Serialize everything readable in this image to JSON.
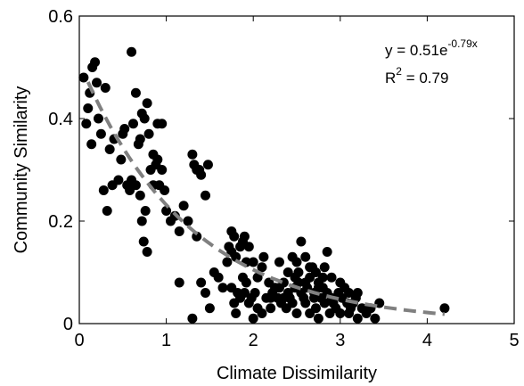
{
  "chart_data": {
    "type": "scatter",
    "xlabel": "Climate Dissimilarity",
    "ylabel": "Community Similarity",
    "xlim": [
      0,
      5
    ],
    "ylim": [
      0,
      0.6
    ],
    "x_ticks": [
      0,
      1,
      2,
      3,
      4,
      5
    ],
    "y_ticks": [
      0,
      0.2,
      0.4,
      0.6
    ],
    "x_tick_labels": [
      "0",
      "1",
      "2",
      "3",
      "4",
      "5"
    ],
    "y_tick_labels": [
      "0",
      "0.2",
      "0.4",
      "0.6"
    ],
    "grid": false,
    "annotation": {
      "equation_prefix": "y = 0.51e",
      "equation_exponent": "-0.79x",
      "r2_prefix": "R",
      "r2_sup": "2",
      "r2_suffix": " = 0.79"
    },
    "fit": {
      "a": 0.51,
      "b": -0.79,
      "x_range": [
        0.1,
        4.2
      ],
      "style": "dashed",
      "color": "#808080"
    },
    "marker_color": "#000000",
    "points": [
      [
        0.05,
        0.48
      ],
      [
        0.1,
        0.42
      ],
      [
        0.15,
        0.5
      ],
      [
        0.18,
        0.51
      ],
      [
        0.12,
        0.45
      ],
      [
        0.08,
        0.39
      ],
      [
        0.2,
        0.47
      ],
      [
        0.14,
        0.35
      ],
      [
        0.22,
        0.4
      ],
      [
        0.25,
        0.37
      ],
      [
        0.3,
        0.46
      ],
      [
        0.28,
        0.26
      ],
      [
        0.32,
        0.22
      ],
      [
        0.35,
        0.34
      ],
      [
        0.4,
        0.36
      ],
      [
        0.38,
        0.27
      ],
      [
        0.45,
        0.28
      ],
      [
        0.48,
        0.32
      ],
      [
        0.5,
        0.37
      ],
      [
        0.52,
        0.38
      ],
      [
        0.55,
        0.27
      ],
      [
        0.6,
        0.53
      ],
      [
        0.62,
        0.39
      ],
      [
        0.65,
        0.45
      ],
      [
        0.68,
        0.35
      ],
      [
        0.7,
        0.36
      ],
      [
        0.72,
        0.41
      ],
      [
        0.75,
        0.4
      ],
      [
        0.78,
        0.43
      ],
      [
        0.8,
        0.37
      ],
      [
        0.58,
        0.26
      ],
      [
        0.65,
        0.27
      ],
      [
        0.7,
        0.25
      ],
      [
        0.72,
        0.2
      ],
      [
        0.74,
        0.16
      ],
      [
        0.76,
        0.22
      ],
      [
        0.78,
        0.14
      ],
      [
        0.82,
        0.3
      ],
      [
        0.85,
        0.33
      ],
      [
        0.88,
        0.31
      ],
      [
        0.9,
        0.39
      ],
      [
        0.92,
        0.27
      ],
      [
        0.95,
        0.3
      ],
      [
        0.98,
        0.26
      ],
      [
        0.95,
        0.39
      ],
      [
        0.6,
        0.28
      ],
      [
        0.85,
        0.27
      ],
      [
        0.9,
        0.32
      ],
      [
        1.0,
        0.22
      ],
      [
        1.05,
        0.2
      ],
      [
        1.1,
        0.21
      ],
      [
        1.15,
        0.18
      ],
      [
        1.2,
        0.23
      ],
      [
        1.25,
        0.2
      ],
      [
        1.15,
        0.08
      ],
      [
        1.3,
        0.33
      ],
      [
        1.32,
        0.31
      ],
      [
        1.35,
        0.3
      ],
      [
        1.38,
        0.3
      ],
      [
        1.4,
        0.29
      ],
      [
        1.45,
        0.25
      ],
      [
        1.48,
        0.31
      ],
      [
        1.3,
        0.01
      ],
      [
        1.5,
        0.03
      ],
      [
        1.45,
        0.06
      ],
      [
        1.4,
        0.08
      ],
      [
        1.35,
        0.17
      ],
      [
        1.55,
        0.1
      ],
      [
        1.6,
        0.09
      ],
      [
        1.65,
        0.07
      ],
      [
        1.7,
        0.12
      ],
      [
        1.72,
        0.15
      ],
      [
        1.75,
        0.18
      ],
      [
        1.78,
        0.17
      ],
      [
        1.75,
        0.14
      ],
      [
        1.8,
        0.13
      ],
      [
        1.85,
        0.15
      ],
      [
        1.88,
        0.16
      ],
      [
        1.9,
        0.17
      ],
      [
        1.95,
        0.15
      ],
      [
        2.0,
        0.12
      ],
      [
        1.75,
        0.07
      ],
      [
        1.78,
        0.04
      ],
      [
        1.8,
        0.02
      ],
      [
        1.82,
        0.06
      ],
      [
        1.85,
        0.05
      ],
      [
        1.88,
        0.09
      ],
      [
        1.9,
        0.06
      ],
      [
        1.92,
        0.08
      ],
      [
        1.95,
        0.04
      ],
      [
        1.98,
        0.05
      ],
      [
        2.0,
        0.01
      ],
      [
        2.02,
        0.06
      ],
      [
        2.05,
        0.09
      ],
      [
        2.1,
        0.11
      ],
      [
        2.12,
        0.13
      ],
      [
        2.15,
        0.05
      ],
      [
        2.18,
        0.08
      ],
      [
        2.2,
        0.03
      ],
      [
        2.22,
        0.06
      ],
      [
        2.25,
        0.07
      ],
      [
        2.28,
        0.05
      ],
      [
        2.3,
        0.07
      ],
      [
        2.32,
        0.04
      ],
      [
        2.35,
        0.08
      ],
      [
        2.38,
        0.03
      ],
      [
        2.4,
        0.06
      ],
      [
        2.42,
        0.05
      ],
      [
        2.45,
        0.04
      ],
      [
        2.48,
        0.07
      ],
      [
        2.5,
        0.12
      ],
      [
        2.52,
        0.08
      ],
      [
        2.55,
        0.06
      ],
      [
        2.58,
        0.05
      ],
      [
        2.6,
        0.04
      ],
      [
        2.62,
        0.07
      ],
      [
        2.65,
        0.09
      ],
      [
        2.68,
        0.11
      ],
      [
        2.7,
        0.06
      ],
      [
        2.72,
        0.03
      ],
      [
        2.75,
        0.08
      ],
      [
        2.78,
        0.05
      ],
      [
        2.8,
        0.07
      ],
      [
        2.82,
        0.04
      ],
      [
        2.85,
        0.06
      ],
      [
        2.88,
        0.02
      ],
      [
        2.9,
        0.05
      ],
      [
        2.92,
        0.04
      ],
      [
        2.95,
        0.03
      ],
      [
        2.98,
        0.06
      ],
      [
        3.0,
        0.02
      ],
      [
        3.02,
        0.05
      ],
      [
        3.05,
        0.07
      ],
      [
        3.08,
        0.04
      ],
      [
        3.1,
        0.02
      ],
      [
        3.12,
        0.03
      ],
      [
        3.15,
        0.04
      ],
      [
        3.18,
        0.05
      ],
      [
        3.2,
        0.01
      ],
      [
        3.25,
        0.03
      ],
      [
        3.3,
        0.02
      ],
      [
        3.35,
        0.03
      ],
      [
        3.4,
        0.01
      ],
      [
        3.45,
        0.04
      ],
      [
        2.55,
        0.16
      ],
      [
        2.6,
        0.13
      ],
      [
        2.65,
        0.11
      ],
      [
        2.72,
        0.1
      ],
      [
        2.8,
        0.09
      ],
      [
        2.85,
        0.14
      ],
      [
        2.3,
        0.12
      ],
      [
        2.4,
        0.1
      ],
      [
        2.45,
        0.13
      ],
      [
        2.48,
        0.09
      ],
      [
        2.52,
        0.1
      ],
      [
        2.6,
        0.08
      ],
      [
        2.7,
        0.05
      ],
      [
        2.75,
        0.07
      ],
      [
        2.82,
        0.11
      ],
      [
        2.9,
        0.09
      ],
      [
        3.0,
        0.08
      ],
      [
        3.1,
        0.06
      ],
      [
        3.2,
        0.06
      ],
      [
        4.2,
        0.03
      ],
      [
        2.1,
        0.02
      ],
      [
        2.2,
        0.05
      ],
      [
        2.35,
        0.05
      ],
      [
        2.5,
        0.02
      ],
      [
        2.65,
        0.02
      ],
      [
        2.75,
        0.01
      ],
      [
        1.92,
        0.12
      ],
      [
        2.05,
        0.03
      ]
    ]
  }
}
